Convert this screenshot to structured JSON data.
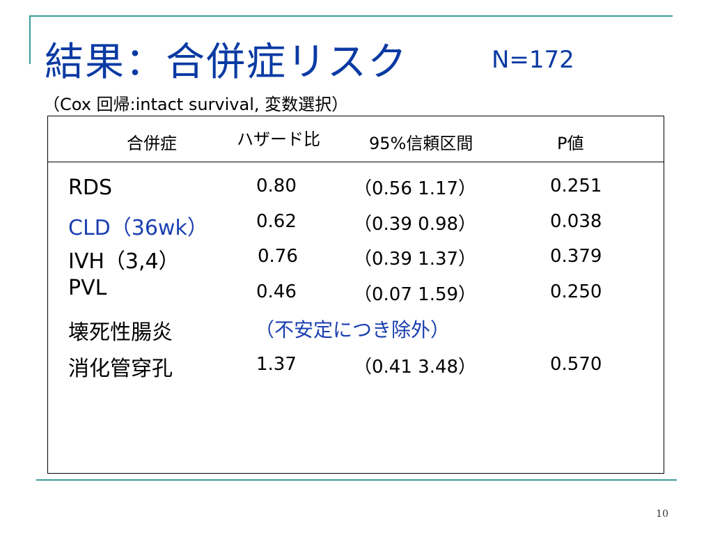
{
  "slide": {
    "title": "結果：合併症リスク",
    "title_n": "N=172",
    "subtitle": "（Cox 回帰:intact survival, 変数選択）",
    "page_number": "10"
  },
  "table": {
    "headers": {
      "complication": "合併症",
      "hazard_ratio": "ハザード比",
      "ci": "95%信頼区間",
      "p": "P値"
    },
    "rows": [
      {
        "label": "RDS",
        "hr": "0.80",
        "ci": "（0.56  1.17）",
        "p": "0.251"
      },
      {
        "label": "CLD（36wk）",
        "hr": "0.62",
        "ci": "（0.39  0.98）",
        "p": "0.038"
      },
      {
        "label": "IVH（3,4）",
        "hr": "0.76",
        "ci": "（0.39  1.37）",
        "p": "0.379"
      },
      {
        "label": "PVL",
        "hr": "0.46",
        "ci": "（0.07  1.59）",
        "p": "0.250"
      },
      {
        "label": "壊死性腸炎",
        "note": "（不安定につき除外）"
      },
      {
        "label": "消化管穿孔",
        "hr": "1.37",
        "ci": "（0.41  3.48）",
        "p": "0.570"
      }
    ]
  },
  "colors": {
    "accent": "#3a9a9a",
    "title": "#0a3aa3",
    "highlight": "#1a3fb0"
  }
}
